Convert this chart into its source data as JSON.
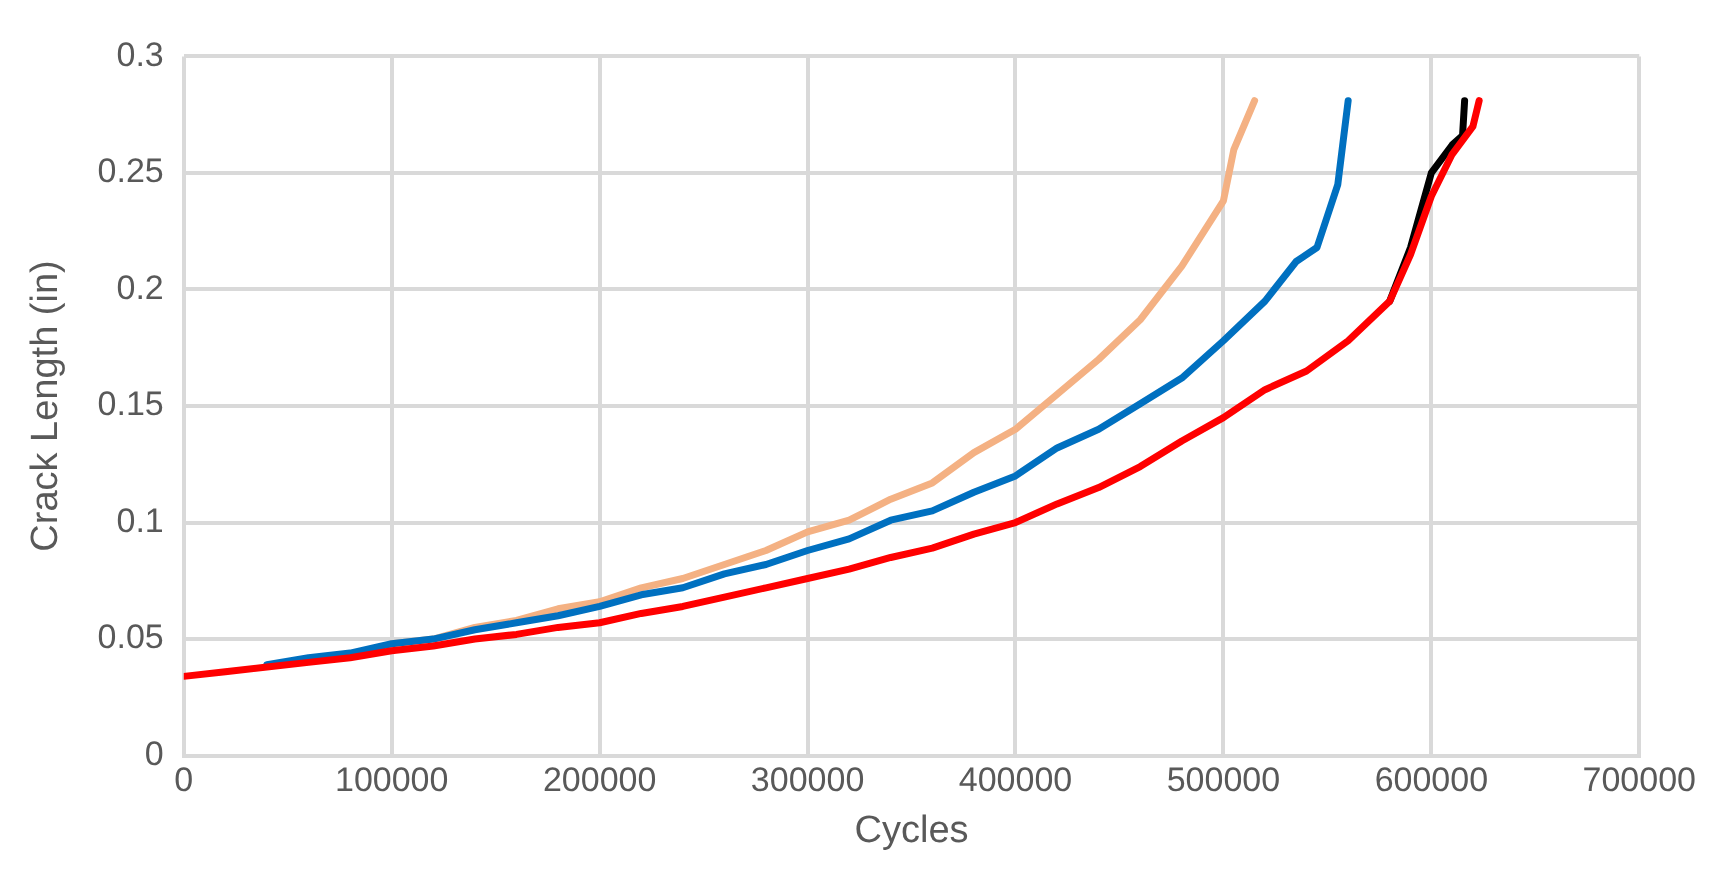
{
  "chart_data": {
    "type": "line",
    "xlabel": "Cycles",
    "ylabel": "Crack Length (in)",
    "xlim": [
      0,
      700000
    ],
    "xticks": [
      0,
      100000,
      200000,
      300000,
      400000,
      500000,
      600000,
      700000
    ],
    "ylim": [
      0,
      0.3
    ],
    "yticks": [
      0,
      0.05,
      0.1,
      0.15,
      0.2,
      0.25,
      0.3
    ],
    "grid": true,
    "legend": false,
    "marker": "none",
    "line_style": "solid",
    "series": [
      {
        "color": "#f4b183",
        "x": [
          100000,
          120000,
          140000,
          160000,
          180000,
          200000,
          220000,
          240000,
          260000,
          280000,
          300000,
          320000,
          340000,
          360000,
          380000,
          400000,
          420000,
          440000,
          460000,
          480000,
          500000,
          505000,
          515000
        ],
        "values": [
          0.048,
          0.05,
          0.055,
          0.058,
          0.063,
          0.066,
          0.072,
          0.076,
          0.082,
          0.088,
          0.096,
          0.101,
          0.11,
          0.117,
          0.13,
          0.14,
          0.155,
          0.17,
          0.187,
          0.21,
          0.238,
          0.26,
          0.281
        ]
      },
      {
        "color": "#0070c0",
        "x": [
          40000,
          60000,
          80000,
          100000,
          120000,
          140000,
          160000,
          180000,
          200000,
          220000,
          240000,
          260000,
          280000,
          300000,
          320000,
          340000,
          360000,
          380000,
          400000,
          420000,
          440000,
          460000,
          480000,
          500000,
          520000,
          535000,
          545000,
          555000,
          560000
        ],
        "values": [
          0.039,
          0.042,
          0.044,
          0.048,
          0.05,
          0.054,
          0.057,
          0.06,
          0.064,
          0.069,
          0.072,
          0.078,
          0.082,
          0.088,
          0.093,
          0.101,
          0.105,
          0.113,
          0.12,
          0.132,
          0.14,
          0.151,
          0.162,
          0.178,
          0.195,
          0.212,
          0.218,
          0.245,
          0.281
        ]
      },
      {
        "color": "#000000",
        "x": [
          580000,
          590000,
          600000,
          610000,
          615000,
          616000
        ],
        "values": [
          0.195,
          0.218,
          0.25,
          0.262,
          0.266,
          0.281
        ]
      },
      {
        "color": "#ff0000",
        "x": [
          0,
          20000,
          40000,
          60000,
          80000,
          100000,
          120000,
          140000,
          160000,
          180000,
          200000,
          220000,
          240000,
          260000,
          280000,
          300000,
          320000,
          340000,
          360000,
          380000,
          400000,
          420000,
          440000,
          460000,
          480000,
          500000,
          520000,
          540000,
          560000,
          580000,
          590000,
          600000,
          610000,
          620000,
          623000
        ],
        "values": [
          0.034,
          0.036,
          0.038,
          0.04,
          0.042,
          0.045,
          0.047,
          0.05,
          0.052,
          0.055,
          0.057,
          0.061,
          0.064,
          0.068,
          0.072,
          0.076,
          0.08,
          0.085,
          0.089,
          0.095,
          0.1,
          0.108,
          0.115,
          0.124,
          0.135,
          0.145,
          0.157,
          0.165,
          0.178,
          0.195,
          0.215,
          0.24,
          0.258,
          0.27,
          0.281
        ]
      }
    ]
  }
}
